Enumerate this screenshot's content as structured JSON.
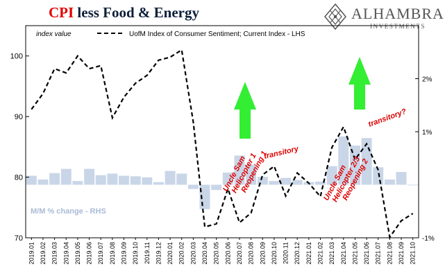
{
  "header": {
    "title_red": "CPI",
    "title_rest": " less Food & Energy"
  },
  "logo": {
    "name": "ALHAMBRA",
    "sub": "INVESTMENTS",
    "icon": "diamond-lattice-icon"
  },
  "colors": {
    "line": "#000000",
    "bars": "#c9d6e8",
    "arrow": "#33ee33",
    "annotation": "#dd0000",
    "title_red": "#e00000",
    "title_dark": "#0d1f3a",
    "rhs_label": "#aabbd6"
  },
  "chart_data": {
    "type": "line+bar",
    "title": "CPI less Food & Energy",
    "categories": [
      "2019.01",
      "2019.02",
      "2019.03",
      "2019.04",
      "2019.05",
      "2019.06",
      "2019.07",
      "2019.08",
      "2019.09",
      "2019.10",
      "2019.11",
      "2019.12",
      "2020.01",
      "2020.02",
      "2020.03",
      "2020.04",
      "2020.05",
      "2020.06",
      "2020.07",
      "2020.08",
      "2020.09",
      "2020.10",
      "2020.11",
      "2020.12",
      "2021.01",
      "2021.02",
      "2021.03",
      "2021.04",
      "2021.05",
      "2021.06",
      "2021.07",
      "2021.08",
      "2021.09",
      "2021.10"
    ],
    "left_axis": {
      "label": "index value",
      "min": 70,
      "max": 105,
      "ticks": [
        70,
        80,
        90,
        100
      ]
    },
    "right_axis": {
      "min": -1.0,
      "max": 3.0,
      "ticks": [
        {
          "v": -1,
          "label": "-1%"
        },
        {
          "v": 1,
          "label": "1%"
        },
        {
          "v": 2,
          "label": "2%"
        }
      ]
    },
    "series": [
      {
        "name": "UofM Index of Consumer Sentiment; Current Index - LHS",
        "kind": "line",
        "axis": "left",
        "values": [
          91.2,
          93.8,
          97.9,
          97.2,
          100.0,
          97.9,
          98.4,
          89.8,
          93.2,
          95.5,
          96.8,
          99.3,
          99.8,
          101.0,
          89.1,
          71.8,
          72.3,
          78.1,
          72.5,
          74.1,
          80.4,
          81.8,
          76.9,
          80.7,
          79.0,
          76.8,
          84.9,
          88.3,
          82.9,
          85.5,
          81.2,
          70.1,
          72.8,
          74.0
        ]
      },
      {
        "name": "M/M % change - RHS",
        "kind": "bar",
        "axis": "right",
        "values": [
          0.17,
          0.1,
          0.22,
          0.3,
          0.07,
          0.3,
          0.18,
          0.21,
          0.17,
          0.16,
          0.14,
          0.05,
          0.26,
          0.21,
          -0.08,
          -0.46,
          -0.1,
          0.23,
          0.55,
          0.38,
          0.15,
          0.07,
          0.13,
          0.09,
          0.05,
          0.06,
          0.35,
          0.91,
          0.74,
          0.88,
          0.33,
          0.1,
          0.24,
          0.0
        ]
      }
    ],
    "annotations": [
      {
        "text": "Uncle Sam Helicopter 1; Reopening 1"
      },
      {
        "text": "transitory"
      },
      {
        "text": "Uncle Sam Helicopter 2/3; Reopening 2"
      },
      {
        "text": "transitory?"
      }
    ],
    "legend": {
      "position": "top",
      "rhs_label": "M/M % change - RHS"
    },
    "grid": false
  }
}
